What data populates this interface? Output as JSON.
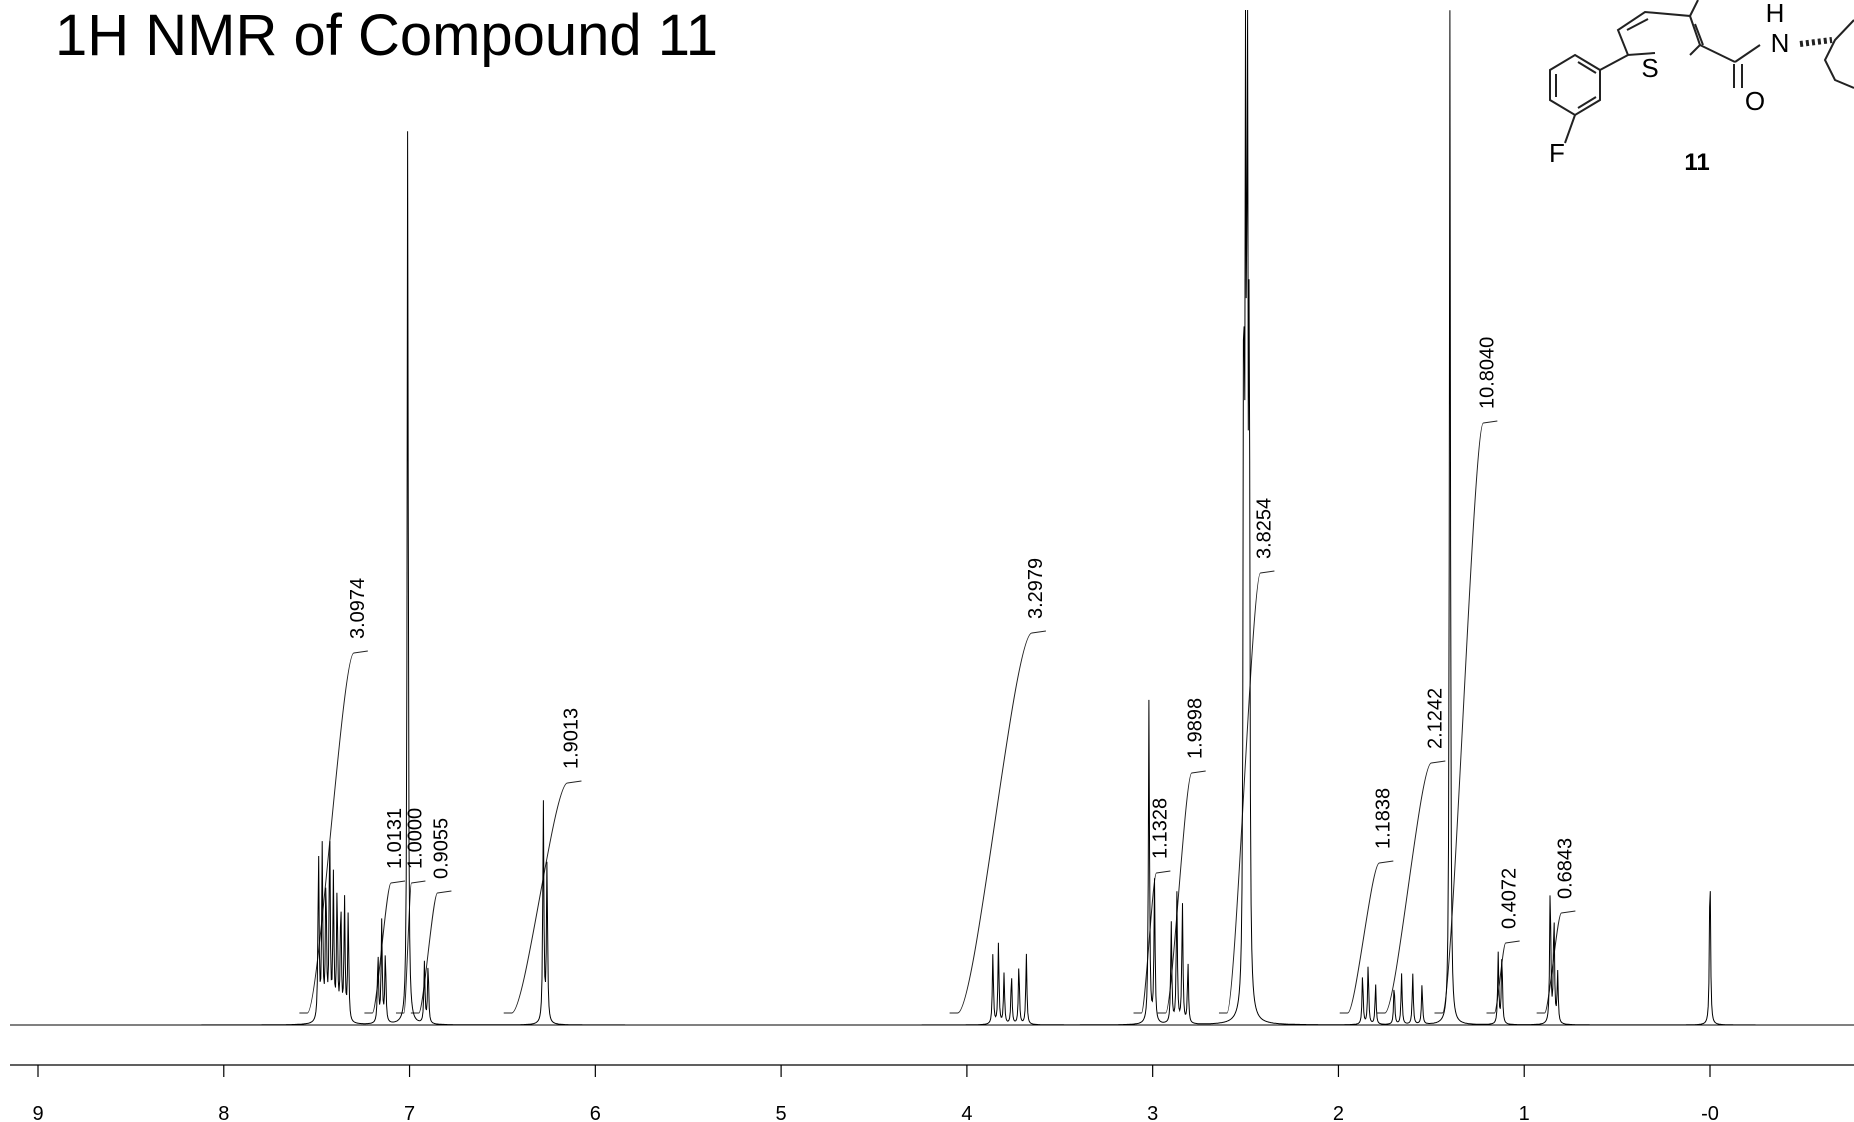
{
  "chart_data": {
    "type": "line",
    "title": "1H NMR of Compound 11",
    "xlabel": "",
    "ylabel": "",
    "x_reversed": true,
    "xlim": [
      9.1,
      -0.75
    ],
    "ticks": [
      {
        "value": 9,
        "label": "9"
      },
      {
        "value": 8,
        "label": "8"
      },
      {
        "value": 7,
        "label": "7"
      },
      {
        "value": 6,
        "label": "6"
      },
      {
        "value": 5,
        "label": "5"
      },
      {
        "value": 4,
        "label": "4"
      },
      {
        "value": 3,
        "label": "3"
      },
      {
        "value": 2,
        "label": "2"
      },
      {
        "value": 1,
        "label": "1"
      },
      {
        "value": 0,
        "label": "-0"
      }
    ],
    "peaks": [
      {
        "ppm": 7.49,
        "h": 0.17
      },
      {
        "ppm": 7.47,
        "h": 0.17
      },
      {
        "ppm": 7.45,
        "h": 0.14
      },
      {
        "ppm": 7.43,
        "h": 0.19
      },
      {
        "ppm": 7.41,
        "h": 0.14
      },
      {
        "ppm": 7.39,
        "h": 0.13
      },
      {
        "ppm": 7.37,
        "h": 0.12
      },
      {
        "ppm": 7.35,
        "h": 0.12
      },
      {
        "ppm": 7.33,
        "h": 0.11
      },
      {
        "ppm": 7.17,
        "h": 0.07
      },
      {
        "ppm": 7.15,
        "h": 0.1
      },
      {
        "ppm": 7.13,
        "h": 0.07
      },
      {
        "ppm": 7.01,
        "h": 0.9
      },
      {
        "ppm": 6.92,
        "h": 0.06
      },
      {
        "ppm": 6.9,
        "h": 0.06
      },
      {
        "ppm": 6.28,
        "h": 0.22
      },
      {
        "ppm": 6.26,
        "h": 0.16
      },
      {
        "ppm": 3.86,
        "h": 0.07
      },
      {
        "ppm": 3.83,
        "h": 0.08
      },
      {
        "ppm": 3.8,
        "h": 0.05
      },
      {
        "ppm": 3.76,
        "h": 0.05
      },
      {
        "ppm": 3.72,
        "h": 0.06
      },
      {
        "ppm": 3.68,
        "h": 0.07
      },
      {
        "ppm": 3.02,
        "h": 0.32
      },
      {
        "ppm": 2.99,
        "h": 0.14
      },
      {
        "ppm": 2.9,
        "h": 0.1
      },
      {
        "ppm": 2.87,
        "h": 0.13
      },
      {
        "ppm": 2.84,
        "h": 0.12
      },
      {
        "ppm": 2.81,
        "h": 0.06
      },
      {
        "ppm": 2.51,
        "h": 0.69
      },
      {
        "ppm": 2.5,
        "h": 0.87
      },
      {
        "ppm": 2.49,
        "h": 0.92
      },
      {
        "ppm": 2.48,
        "h": 0.66
      },
      {
        "ppm": 1.87,
        "h": 0.05
      },
      {
        "ppm": 1.84,
        "h": 0.06
      },
      {
        "ppm": 1.8,
        "h": 0.04
      },
      {
        "ppm": 1.7,
        "h": 0.04
      },
      {
        "ppm": 1.66,
        "h": 0.05
      },
      {
        "ppm": 1.6,
        "h": 0.05
      },
      {
        "ppm": 1.55,
        "h": 0.04
      },
      {
        "ppm": 1.4,
        "h": 1.0
      },
      {
        "ppm": 1.14,
        "h": 0.07
      },
      {
        "ppm": 1.12,
        "h": 0.07
      },
      {
        "ppm": 0.86,
        "h": 0.14
      },
      {
        "ppm": 0.84,
        "h": 0.11
      },
      {
        "ppm": 0.82,
        "h": 0.05
      },
      {
        "ppm": 0.0,
        "h": 0.16
      }
    ],
    "integrals": [
      {
        "from": 7.55,
        "to": 7.3,
        "label": "3.0974",
        "h": 0.36
      },
      {
        "from": 7.2,
        "to": 7.1,
        "label": "1.0131",
        "h": 0.13
      },
      {
        "from": 7.03,
        "to": 6.99,
        "label": "1.0000",
        "h": 0.13
      },
      {
        "from": 6.95,
        "to": 6.85,
        "label": "0.9055",
        "h": 0.12
      },
      {
        "from": 6.45,
        "to": 6.15,
        "label": "1.9013",
        "h": 0.23
      },
      {
        "from": 4.05,
        "to": 3.65,
        "label": "3.2979",
        "h": 0.38
      },
      {
        "from": 3.06,
        "to": 2.98,
        "label": "1.1328",
        "h": 0.14
      },
      {
        "from": 2.93,
        "to": 2.79,
        "label": "1.9898",
        "h": 0.24
      },
      {
        "from": 2.6,
        "to": 2.42,
        "label": "3.8254",
        "h": 0.44
      },
      {
        "from": 1.95,
        "to": 1.78,
        "label": "1.1838",
        "h": 0.15
      },
      {
        "from": 1.75,
        "to": 1.5,
        "label": "2.1242",
        "h": 0.25
      },
      {
        "from": 1.44,
        "to": 1.22,
        "label": "10.8040",
        "h": 0.59
      },
      {
        "from": 1.16,
        "to": 1.1,
        "label": "0.4072",
        "h": 0.07
      },
      {
        "from": 0.89,
        "to": 0.8,
        "label": "0.6843",
        "h": 0.1
      }
    ],
    "structure_label": "11",
    "structure_atoms": [
      "S",
      "H",
      "N",
      "O",
      "F"
    ]
  }
}
